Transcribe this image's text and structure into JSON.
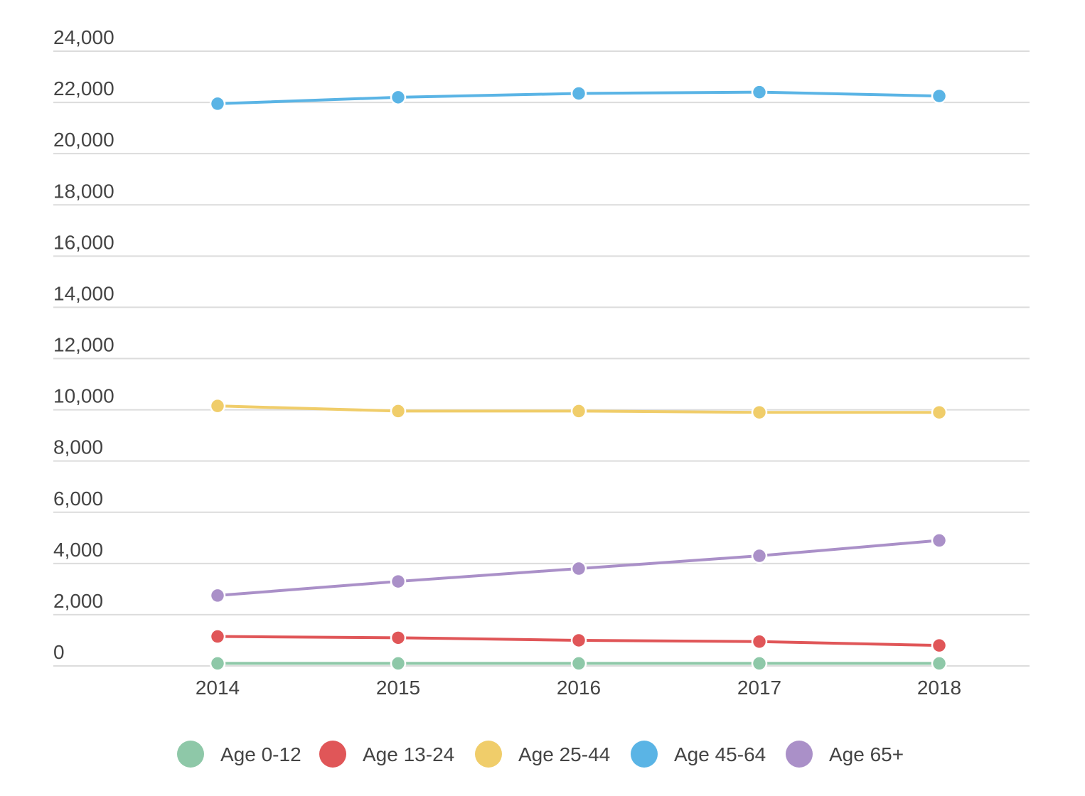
{
  "chart_data": {
    "type": "line",
    "categories": [
      "2014",
      "2015",
      "2016",
      "2017",
      "2018"
    ],
    "y_ticks": [
      "0",
      "2,000",
      "4,000",
      "6,000",
      "8,000",
      "10,000",
      "12,000",
      "14,000",
      "16,000",
      "18,000",
      "20,000",
      "22,000",
      "24,000"
    ],
    "ylim": [
      0,
      24000
    ],
    "grid": true,
    "legend_position": "bottom",
    "series": [
      {
        "name": "Age 0-12",
        "color": "#8ec8a8",
        "values": [
          100,
          100,
          100,
          100,
          100
        ]
      },
      {
        "name": "Age 13-24",
        "color": "#e05658",
        "values": [
          1150,
          1100,
          1000,
          950,
          800
        ]
      },
      {
        "name": "Age 25-44",
        "color": "#f0cd6a",
        "values": [
          10150,
          9950,
          9950,
          9900,
          9900
        ]
      },
      {
        "name": "Age 45-64",
        "color": "#5ab4e5",
        "values": [
          21950,
          22200,
          22350,
          22400,
          22250
        ]
      },
      {
        "name": "Age 65+",
        "color": "#aa90c8",
        "values": [
          2750,
          3300,
          3800,
          4300,
          4900
        ]
      }
    ]
  }
}
